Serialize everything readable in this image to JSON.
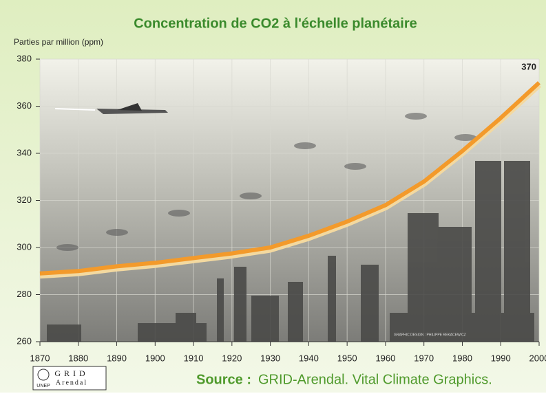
{
  "chart_data": {
    "type": "line",
    "title": "Concentration de CO2 à l'échelle planétaire",
    "y_label": "Parties par million (ppm)",
    "x": [
      1870,
      1880,
      1890,
      1900,
      1910,
      1920,
      1930,
      1940,
      1950,
      1960,
      1970,
      1980,
      1990,
      2000
    ],
    "values": [
      289,
      290,
      292,
      293.5,
      295.5,
      297.5,
      300,
      305,
      311,
      318,
      328,
      341,
      355,
      370
    ],
    "value_labels": [
      null,
      null,
      null,
      null,
      null,
      null,
      null,
      null,
      null,
      null,
      null,
      null,
      null,
      "370"
    ],
    "color": "#f39a2b",
    "xlim": [
      1870,
      2000
    ],
    "xticks": [
      1870,
      1880,
      1890,
      1900,
      1910,
      1920,
      1930,
      1940,
      1950,
      1960,
      1970,
      1980,
      1990,
      2000
    ],
    "ylim": [
      260,
      380
    ],
    "yticks": [
      260,
      280,
      300,
      320,
      340,
      360,
      380
    ],
    "grid": true
  },
  "credit": "GRAPHIC DESIGN : PHILIPPE REKACEWICZ",
  "logo": {
    "org": "UNEP",
    "name": "GRID",
    "place": "Arendal"
  },
  "source": {
    "label": "Source :",
    "text": "GRID-Arendal. Vital Climate Graphics."
  }
}
